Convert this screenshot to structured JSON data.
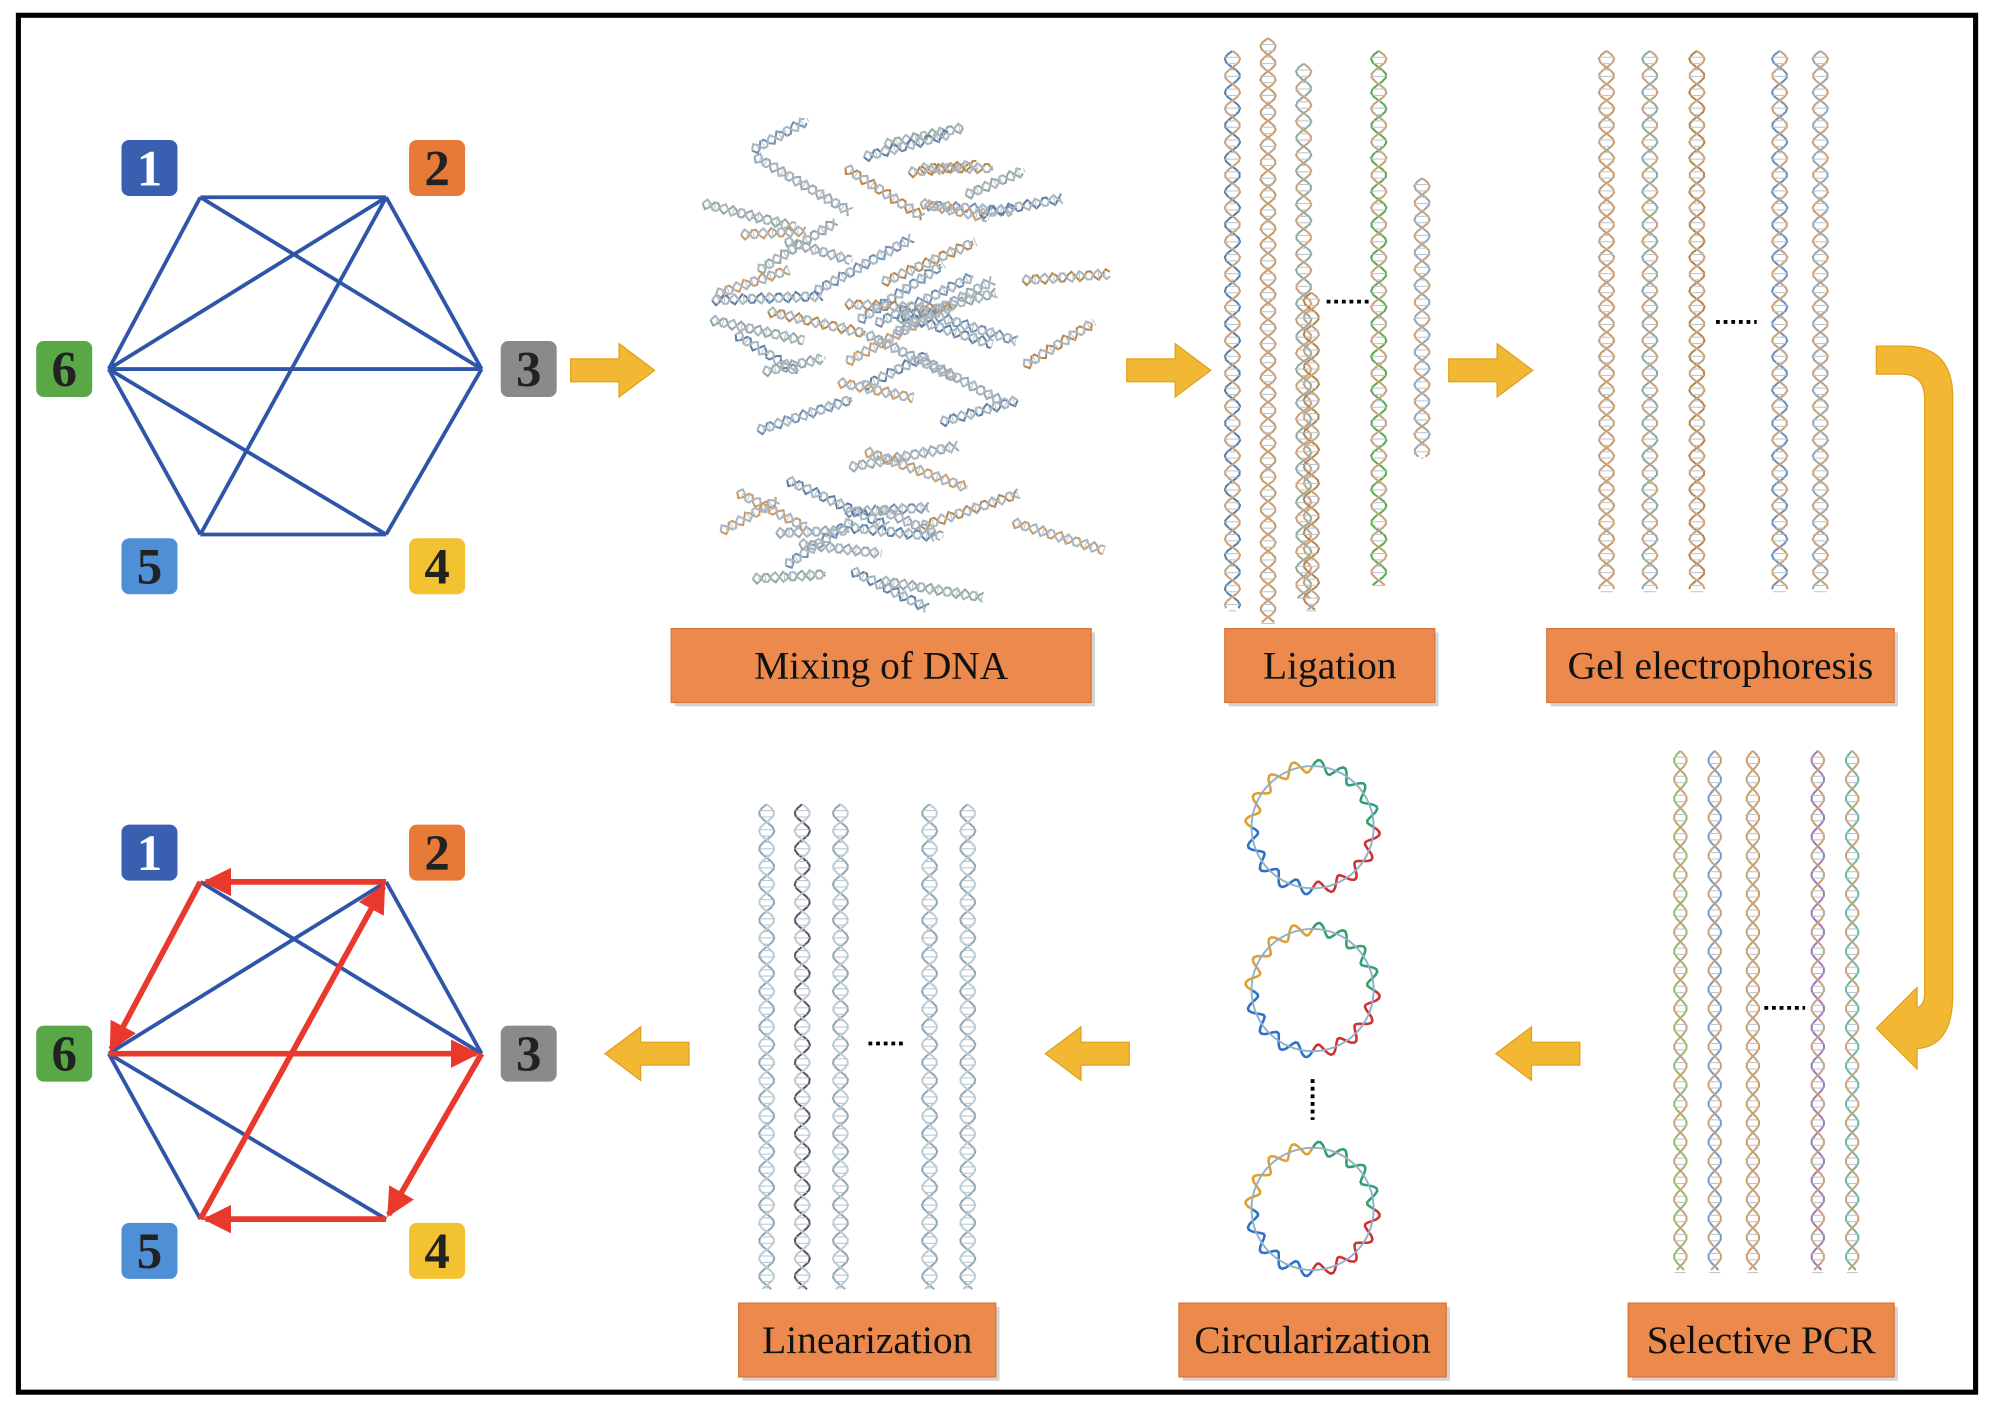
{
  "graph_top": {
    "nodes": [
      "1",
      "2",
      "3",
      "4",
      "5",
      "6"
    ]
  },
  "graph_bottom": {
    "nodes": [
      "1",
      "2",
      "3",
      "4",
      "5",
      "6"
    ]
  },
  "steps": [
    "Mixing of DNA",
    "Ligation",
    "Gel electrophoresis",
    "Selective PCR",
    "Circularization",
    "Linearization"
  ]
}
